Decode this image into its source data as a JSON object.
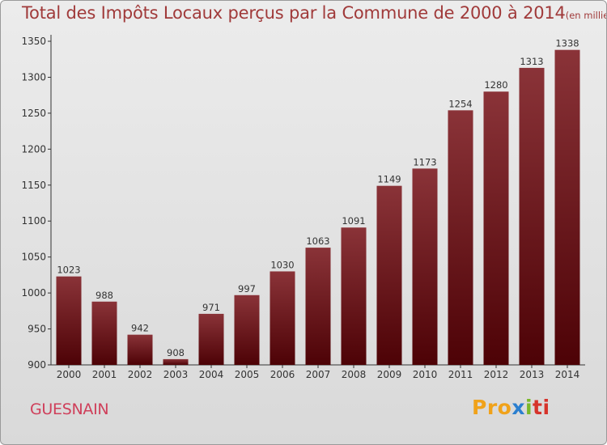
{
  "title": {
    "main": "Total des Impôts Locaux perçus par la Commune de 2000 à 2014",
    "unit": "(en milliers d'€)"
  },
  "commune": "GUESNAIN",
  "logo": {
    "parts": [
      "Pro",
      "x",
      "i",
      "ti"
    ],
    "colors": [
      "#f0a21a",
      "#2b7fcf",
      "#7ab829",
      "#d6332b"
    ]
  },
  "chart_data": {
    "type": "bar",
    "title": "Total des Impôts Locaux perçus par la Commune de 2000 à 2014",
    "ylabel": "en milliers d'€",
    "xlabel": "",
    "categories": [
      "2000",
      "2001",
      "2002",
      "2003",
      "2004",
      "2005",
      "2006",
      "2007",
      "2008",
      "2009",
      "2010",
      "2011",
      "2012",
      "2013",
      "2014"
    ],
    "values": [
      1023,
      988,
      942,
      908,
      971,
      997,
      1030,
      1063,
      1091,
      1149,
      1173,
      1254,
      1280,
      1313,
      1338
    ],
    "ylim": [
      900,
      1350
    ],
    "yticks": [
      900,
      950,
      1000,
      1050,
      1100,
      1150,
      1200,
      1250,
      1300,
      1350
    ],
    "grid": false,
    "bar_color_top": "#8a3338",
    "bar_color_bottom": "#4d0206"
  }
}
